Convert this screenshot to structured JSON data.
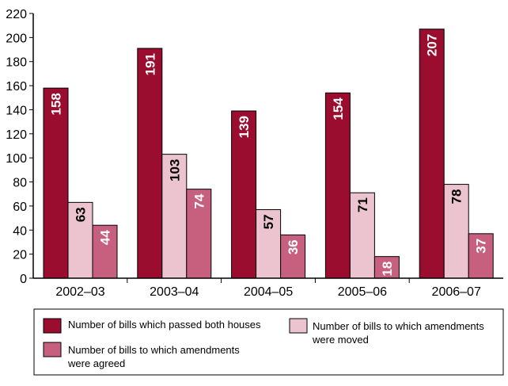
{
  "chart_data": {
    "type": "bar",
    "title": "",
    "xlabel": "",
    "ylabel": "",
    "ylim": [
      0,
      220
    ],
    "yticks": [
      0,
      20,
      40,
      60,
      80,
      100,
      120,
      140,
      160,
      180,
      200,
      220
    ],
    "categories": [
      "2002–03",
      "2003–04",
      "2004–05",
      "2005–06",
      "2006–07"
    ],
    "series": [
      {
        "name": "Number of bills which passed both houses",
        "color": "#9b0d2f",
        "label_color": "#ffffff",
        "values": [
          158,
          191,
          139,
          154,
          207
        ]
      },
      {
        "name": "Number of bills to which amendments were moved",
        "color": "#ecc4cf",
        "label_color": "#000000",
        "values": [
          63,
          103,
          57,
          71,
          78
        ]
      },
      {
        "name": "Number of bills to which amendments were agreed",
        "color": "#c7607e",
        "label_color": "#ffffff",
        "values": [
          44,
          74,
          36,
          18,
          37
        ]
      }
    ],
    "legend": {
      "position": "bottom",
      "lines": [
        [
          "Number of bills which passed both houses"
        ],
        [
          "Number of bills to which amendments",
          "were moved"
        ],
        [
          "Number of bills to which amendments",
          "were agreed"
        ]
      ]
    }
  }
}
